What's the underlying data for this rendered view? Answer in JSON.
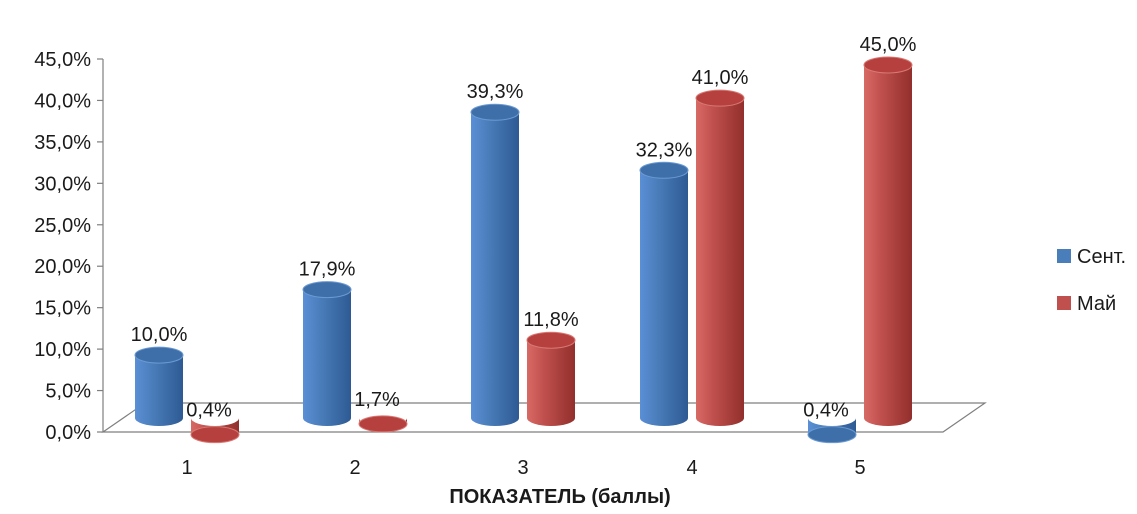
{
  "chart_data": {
    "type": "bar",
    "categories": [
      "1",
      "2",
      "3",
      "4",
      "5"
    ],
    "series": [
      {
        "name": "Сент.",
        "values": [
          10.0,
          17.9,
          39.3,
          32.3,
          0.4
        ],
        "color": "#4a7ebb",
        "labels": [
          "10,0%",
          "17,9%",
          "39,3%",
          "32,3%",
          "0,4%"
        ]
      },
      {
        "name": "Май",
        "values": [
          0.4,
          1.7,
          11.8,
          41.0,
          45.0
        ],
        "color": "#c0504d",
        "labels": [
          "0,4%",
          "1,7%",
          "11,8%",
          "41,0%",
          "45,0%"
        ]
      }
    ],
    "ylim": [
      0,
      45
    ],
    "yticks": [
      "0,0%",
      "5,0%",
      "10,0%",
      "15,0%",
      "20,0%",
      "25,0%",
      "30,0%",
      "35,0%",
      "40,0%",
      "45,0%"
    ],
    "xlabel": "ПОКАЗАТЕЛЬ (баллы)",
    "ylabel": "",
    "legend_position": "right",
    "style": "3d-cylinder",
    "grid": false
  }
}
